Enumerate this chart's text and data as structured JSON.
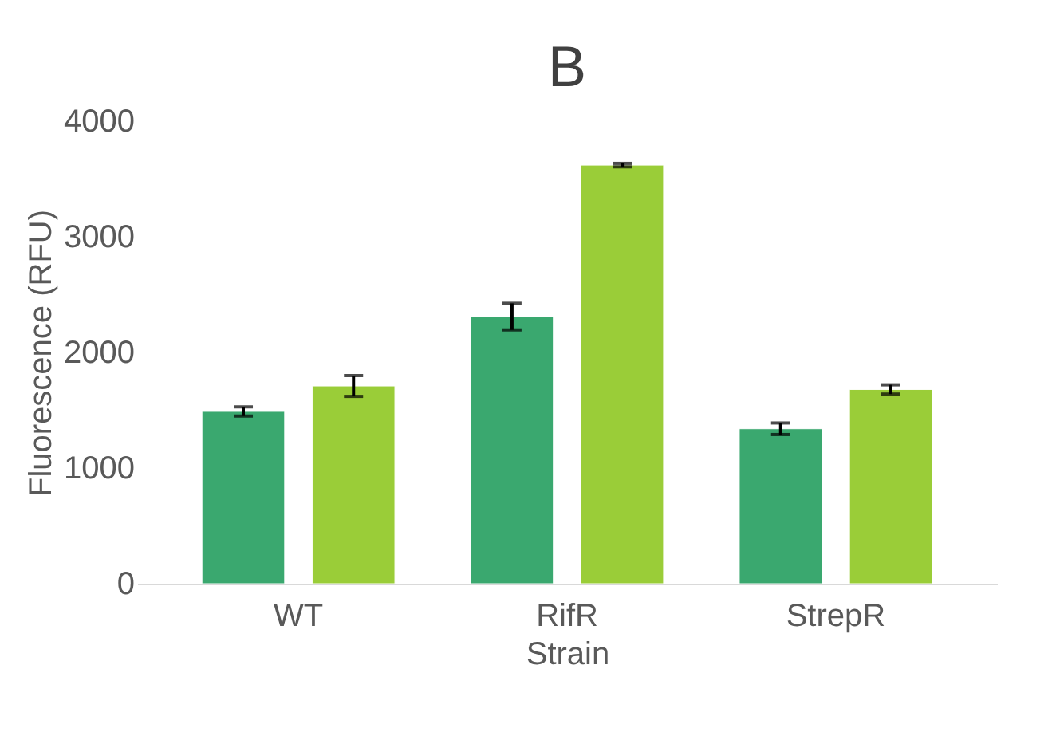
{
  "chart_data": {
    "type": "bar",
    "title": "B",
    "xlabel": "Strain",
    "ylabel": "Fluorescence (RFU)",
    "categories": [
      "WT",
      "RifR",
      "StrepR"
    ],
    "series": [
      {
        "color": "#3aa86f",
        "values": [
          1490,
          2310,
          1340
        ],
        "errors": [
          40,
          115,
          50
        ]
      },
      {
        "color": "#9acd38",
        "values": [
          1710,
          3620,
          1680
        ],
        "errors": [
          90,
          15,
          40
        ]
      }
    ],
    "ylim": [
      0,
      4000
    ],
    "yticks": [
      0,
      1000,
      2000,
      3000,
      4000
    ],
    "grid": false,
    "legend": false
  }
}
